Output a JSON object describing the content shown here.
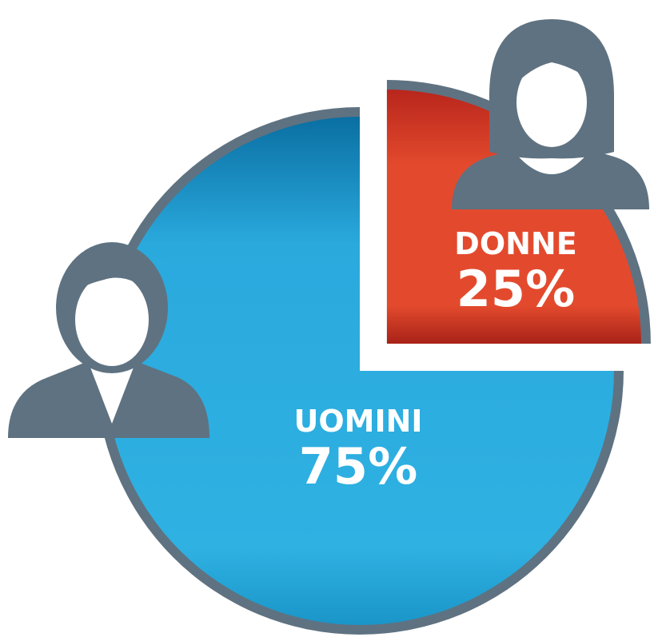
{
  "chart_data": {
    "type": "pie",
    "categories": [
      "UOMINI",
      "DONNE"
    ],
    "values": [
      75,
      25
    ],
    "value_labels": [
      "75%",
      "25%"
    ],
    "colors": [
      "#2aa9dd",
      "#e34a2d"
    ]
  }
}
